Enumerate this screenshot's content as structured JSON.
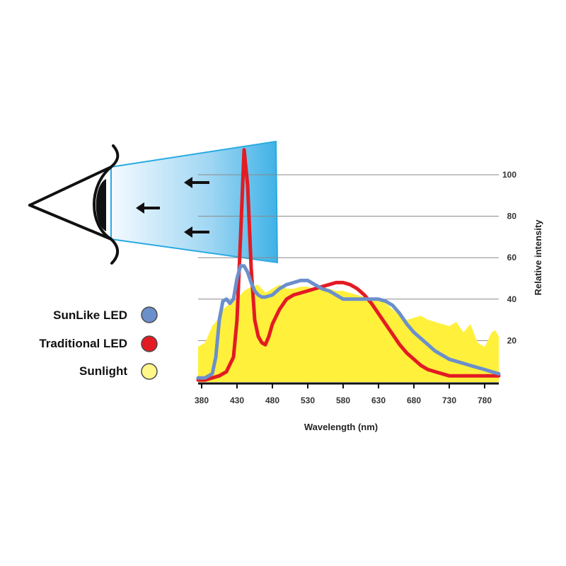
{
  "chart_data": {
    "type": "area",
    "xlabel": "Wavelength (nm)",
    "ylabel": "Relative intensity",
    "xlim": [
      375,
      800
    ],
    "ylim": [
      0,
      100
    ],
    "x_ticks": [
      380,
      430,
      480,
      530,
      580,
      630,
      680,
      730,
      780
    ],
    "y_ticks": [
      20,
      40,
      60,
      80,
      100
    ],
    "grid": "horizontal",
    "legend_position": "left",
    "series": [
      {
        "name": "Sunlight",
        "style": "area",
        "color": "#fff03c",
        "x": [
          375,
          385,
          395,
          405,
          410,
          420,
          430,
          440,
          450,
          460,
          470,
          480,
          490,
          500,
          510,
          520,
          530,
          540,
          550,
          560,
          570,
          580,
          590,
          600,
          610,
          620,
          630,
          640,
          650,
          660,
          670,
          680,
          690,
          700,
          710,
          720,
          730,
          740,
          750,
          760,
          770,
          780,
          790,
          795,
          800
        ],
        "values": [
          17,
          19,
          27,
          31,
          35,
          38,
          40,
          44,
          46,
          47,
          43,
          45,
          47,
          45,
          45,
          46,
          46,
          45,
          46,
          45,
          44,
          44,
          43,
          42,
          41,
          40,
          40,
          38,
          35,
          32,
          30,
          31,
          32,
          30,
          29,
          28,
          27,
          29,
          24,
          28,
          19,
          17,
          24,
          25,
          22
        ]
      },
      {
        "name": "Traditional LED",
        "style": "line",
        "color": "#e31b23",
        "x": [
          375,
          385,
          395,
          405,
          415,
          425,
          430,
          435,
          440,
          445,
          450,
          455,
          460,
          465,
          470,
          475,
          480,
          490,
          500,
          510,
          520,
          530,
          540,
          550,
          560,
          570,
          580,
          590,
          600,
          610,
          620,
          630,
          640,
          650,
          660,
          670,
          680,
          690,
          700,
          710,
          720,
          730,
          740,
          750,
          760,
          770,
          780,
          790,
          800
        ],
        "values": [
          1,
          1,
          2,
          3,
          5,
          12,
          30,
          70,
          112,
          95,
          55,
          30,
          22,
          19,
          18,
          22,
          28,
          35,
          40,
          42,
          43,
          44,
          45,
          46,
          47,
          48,
          48,
          47,
          45,
          42,
          38,
          33,
          28,
          23,
          18,
          14,
          11,
          8,
          6,
          5,
          4,
          3,
          3,
          3,
          3,
          3,
          3,
          3,
          3
        ]
      },
      {
        "name": "SunLike LED",
        "style": "line",
        "color": "#6b8fcb",
        "x": [
          375,
          385,
          395,
          400,
          405,
          410,
          415,
          420,
          425,
          430,
          435,
          440,
          445,
          450,
          455,
          460,
          465,
          470,
          480,
          490,
          500,
          510,
          520,
          530,
          540,
          550,
          560,
          570,
          580,
          590,
          600,
          610,
          620,
          630,
          640,
          650,
          660,
          670,
          680,
          690,
          700,
          710,
          720,
          730,
          740,
          750,
          760,
          770,
          780,
          790,
          800
        ],
        "values": [
          2,
          2,
          4,
          12,
          30,
          39,
          40,
          38,
          40,
          50,
          56,
          56,
          53,
          48,
          44,
          42,
          41,
          41,
          42,
          45,
          47,
          48,
          49,
          49,
          47,
          45,
          44,
          42,
          40,
          40,
          40,
          40,
          40,
          40,
          39,
          37,
          33,
          28,
          24,
          21,
          18,
          15,
          13,
          11,
          10,
          9,
          8,
          7,
          6,
          5,
          4
        ]
      }
    ]
  },
  "legend": {
    "items": [
      {
        "label": "SunLike LED",
        "color": "#6b8fcb"
      },
      {
        "label": "Traditional LED",
        "color": "#e31b23"
      },
      {
        "label": "Sunlight",
        "color": "#fff78a"
      }
    ]
  },
  "illustration": {
    "icons": [
      "eye-icon",
      "arrow-left-icon"
    ],
    "beam_color_near": "#f4faff",
    "beam_color_far": "#3fb2e6",
    "beam_edge_color": "#29aae2"
  }
}
